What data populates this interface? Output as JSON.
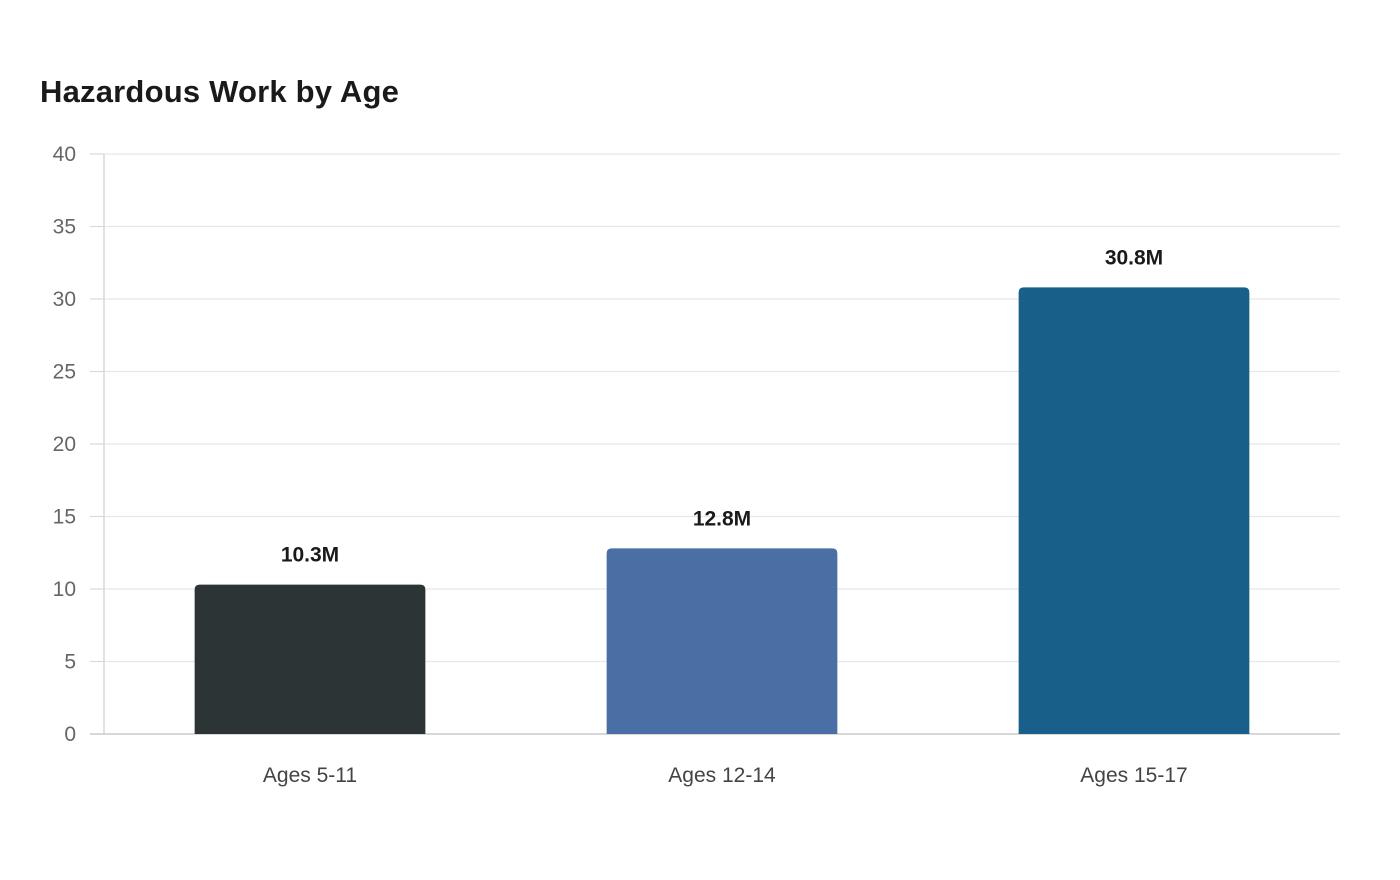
{
  "chart_data": {
    "type": "bar",
    "title": "Hazardous Work by Age",
    "categories": [
      "Ages 5-11",
      "Ages 12-14",
      "Ages 15-17"
    ],
    "values": [
      10.3,
      12.8,
      30.8
    ],
    "data_labels": [
      "10.3M",
      "12.8M",
      "30.8M"
    ],
    "colors": [
      "#2d3436",
      "#4a6fa5",
      "#186089"
    ],
    "xlabel": "",
    "ylabel": "",
    "ylim": [
      0,
      40
    ],
    "yticks": [
      0,
      5,
      10,
      15,
      20,
      25,
      30,
      35,
      40
    ],
    "grid": true,
    "legend": "none"
  }
}
